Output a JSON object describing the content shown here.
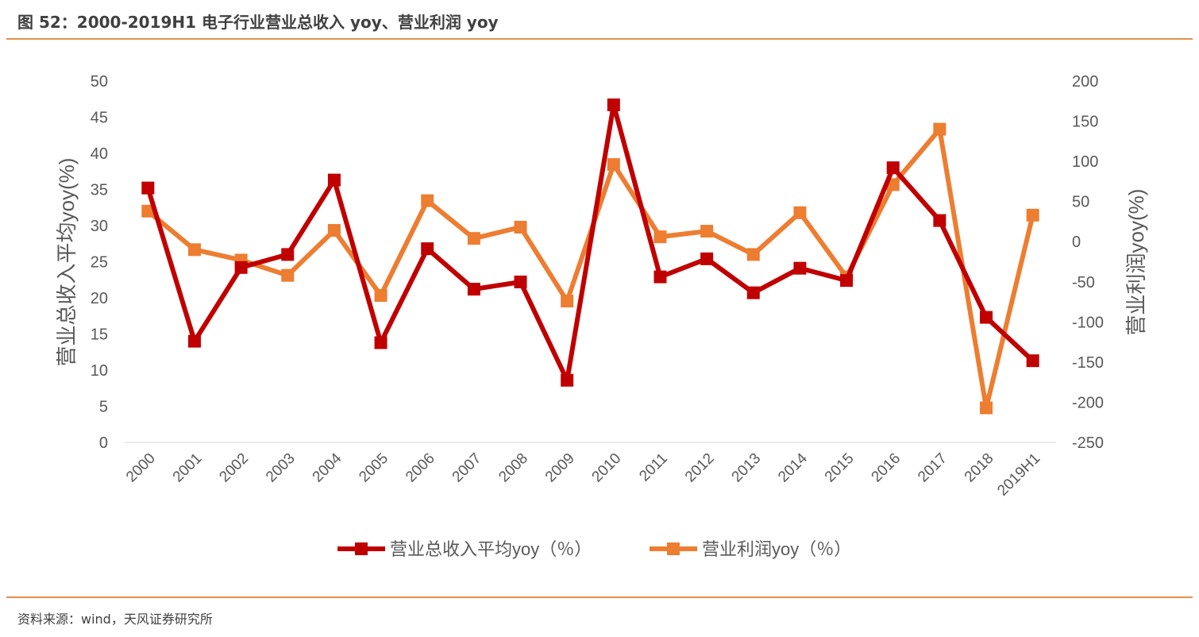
{
  "title": "图 52：2000-2019H1 电子行业营业总收入 yoy、营业利润 yoy",
  "source": "资料来源：wind，天风证券研究所",
  "colors": {
    "revenue": "#c00000",
    "profit": "#ed7d31",
    "rule": "#e3924b"
  },
  "chart_data": {
    "type": "line",
    "categories": [
      "2000",
      "2001",
      "2002",
      "2003",
      "2004",
      "2005",
      "2006",
      "2007",
      "2008",
      "2009",
      "2010",
      "2011",
      "2012",
      "2013",
      "2014",
      "2015",
      "2016",
      "2017",
      "2018",
      "2019H1"
    ],
    "series": [
      {
        "name": "营业总收入平均yoy（％）",
        "axis": "left",
        "marker": "square",
        "values": [
          35.2,
          14.0,
          24.2,
          26.0,
          36.3,
          13.8,
          26.8,
          21.2,
          22.2,
          8.6,
          46.7,
          22.9,
          25.4,
          20.7,
          24.1,
          22.4,
          38.0,
          30.7,
          17.3,
          11.3
        ]
      },
      {
        "name": "营业利润yoy（％）",
        "axis": "right",
        "marker": "square",
        "values": [
          38,
          -10,
          -23,
          -42,
          14,
          -67,
          51,
          4,
          18,
          -74,
          96,
          6,
          13,
          -16,
          36,
          -44,
          71,
          140,
          -207,
          33
        ]
      }
    ],
    "ylabel": "营业总收入平均yoy(%)",
    "y2label": "营业利润yoy(%)",
    "ylim": [
      0,
      50
    ],
    "y2lim": [
      -250,
      200
    ],
    "yticks": [
      "0",
      "5",
      "10",
      "15",
      "20",
      "25",
      "30",
      "35",
      "40",
      "45",
      "50"
    ],
    "y2ticks": [
      "-250",
      "-200",
      "-150",
      "-100",
      "-50",
      "0",
      "50",
      "100",
      "150",
      "200"
    ],
    "grid": false,
    "legend": "bottom"
  }
}
